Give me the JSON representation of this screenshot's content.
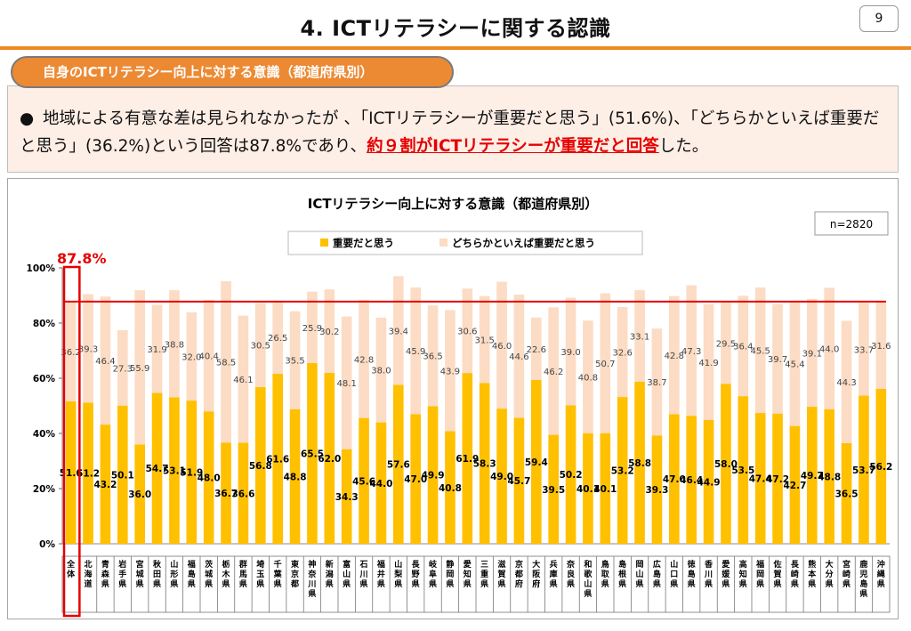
{
  "header": {
    "title": "4. ICTリテラシーに関する認識",
    "page_number": "9"
  },
  "section_tab": {
    "label": "自身のICTリテラシー向上に対する意識（都道府県別）"
  },
  "summary": {
    "bullet": "●",
    "text_before": "地域による有意な差は見られなかったが 、「ICTリテラシーが重要だと思う」(51.6%)、「どちらかといえば重要だと思う」(36.2%)という回答は87.8%であり、",
    "highlight": "約９割がICTリテラシーが重要だと回答",
    "text_after": "した。"
  },
  "colors": {
    "series1": "#ffc000",
    "series2": "#fcdcc4",
    "accent_red": "#e60000",
    "orange": "#ee8a1f"
  },
  "chart_data": {
    "type": "bar",
    "stacked": true,
    "title": "ICTリテラシー向上に対する意識（都道府県別）",
    "sample_size": "n=2820",
    "reference_label": "87.8%",
    "reference_value": 87.8,
    "ylim": [
      0,
      100
    ],
    "yticks": [
      "0%",
      "20%",
      "40%",
      "60%",
      "80%",
      "100%"
    ],
    "legend_position": "top",
    "categories": [
      "全体",
      "北海道",
      "青森県",
      "岩手県",
      "宮城県",
      "秋田県",
      "山形県",
      "福島県",
      "茨城県",
      "栃木県",
      "群馬県",
      "埼玉県",
      "千葉県",
      "東京都",
      "神奈川県",
      "新潟県",
      "富山県",
      "石川県",
      "福井県",
      "山梨県",
      "長野県",
      "岐阜県",
      "静岡県",
      "愛知県",
      "三重県",
      "滋賀県",
      "京都府",
      "大阪府",
      "兵庫県",
      "奈良県",
      "和歌山県",
      "鳥取県",
      "島根県",
      "岡山県",
      "広島県",
      "山口県",
      "徳島県",
      "香川県",
      "愛媛県",
      "高知県",
      "福岡県",
      "佐賀県",
      "長崎県",
      "熊本県",
      "大分県",
      "宮崎県",
      "鹿児島県",
      "沖縄県"
    ],
    "series": [
      {
        "name": "重要だと思う",
        "values": [
          51.6,
          51.2,
          43.2,
          50.1,
          36.0,
          54.7,
          53.1,
          51.9,
          48.0,
          36.7,
          36.6,
          56.8,
          61.6,
          48.8,
          65.5,
          62.0,
          34.3,
          45.6,
          44.0,
          57.6,
          47.0,
          49.9,
          40.8,
          61.9,
          58.3,
          49.0,
          45.7,
          59.4,
          39.5,
          50.2,
          40.1,
          40.1,
          53.2,
          58.8,
          39.3,
          47.0,
          46.4,
          44.9,
          58.0,
          53.5,
          47.4,
          47.2,
          42.7,
          49.7,
          48.8,
          36.5,
          53.7,
          56.2
        ]
      },
      {
        "name": "どちらかといえば重要だと思う",
        "values": [
          36.2,
          39.3,
          46.4,
          27.3,
          55.9,
          31.9,
          38.8,
          32.0,
          40.4,
          58.5,
          46.1,
          30.5,
          26.5,
          35.5,
          25.9,
          30.2,
          48.1,
          42.8,
          38.0,
          39.4,
          45.9,
          36.5,
          43.9,
          30.6,
          31.5,
          46.0,
          44.6,
          22.6,
          46.2,
          39.0,
          40.8,
          50.7,
          32.6,
          33.1,
          38.7,
          42.8,
          47.3,
          41.9,
          29.5,
          36.4,
          45.5,
          39.7,
          45.4,
          39.1,
          44.0,
          44.3,
          33.7,
          31.6
        ]
      }
    ]
  }
}
